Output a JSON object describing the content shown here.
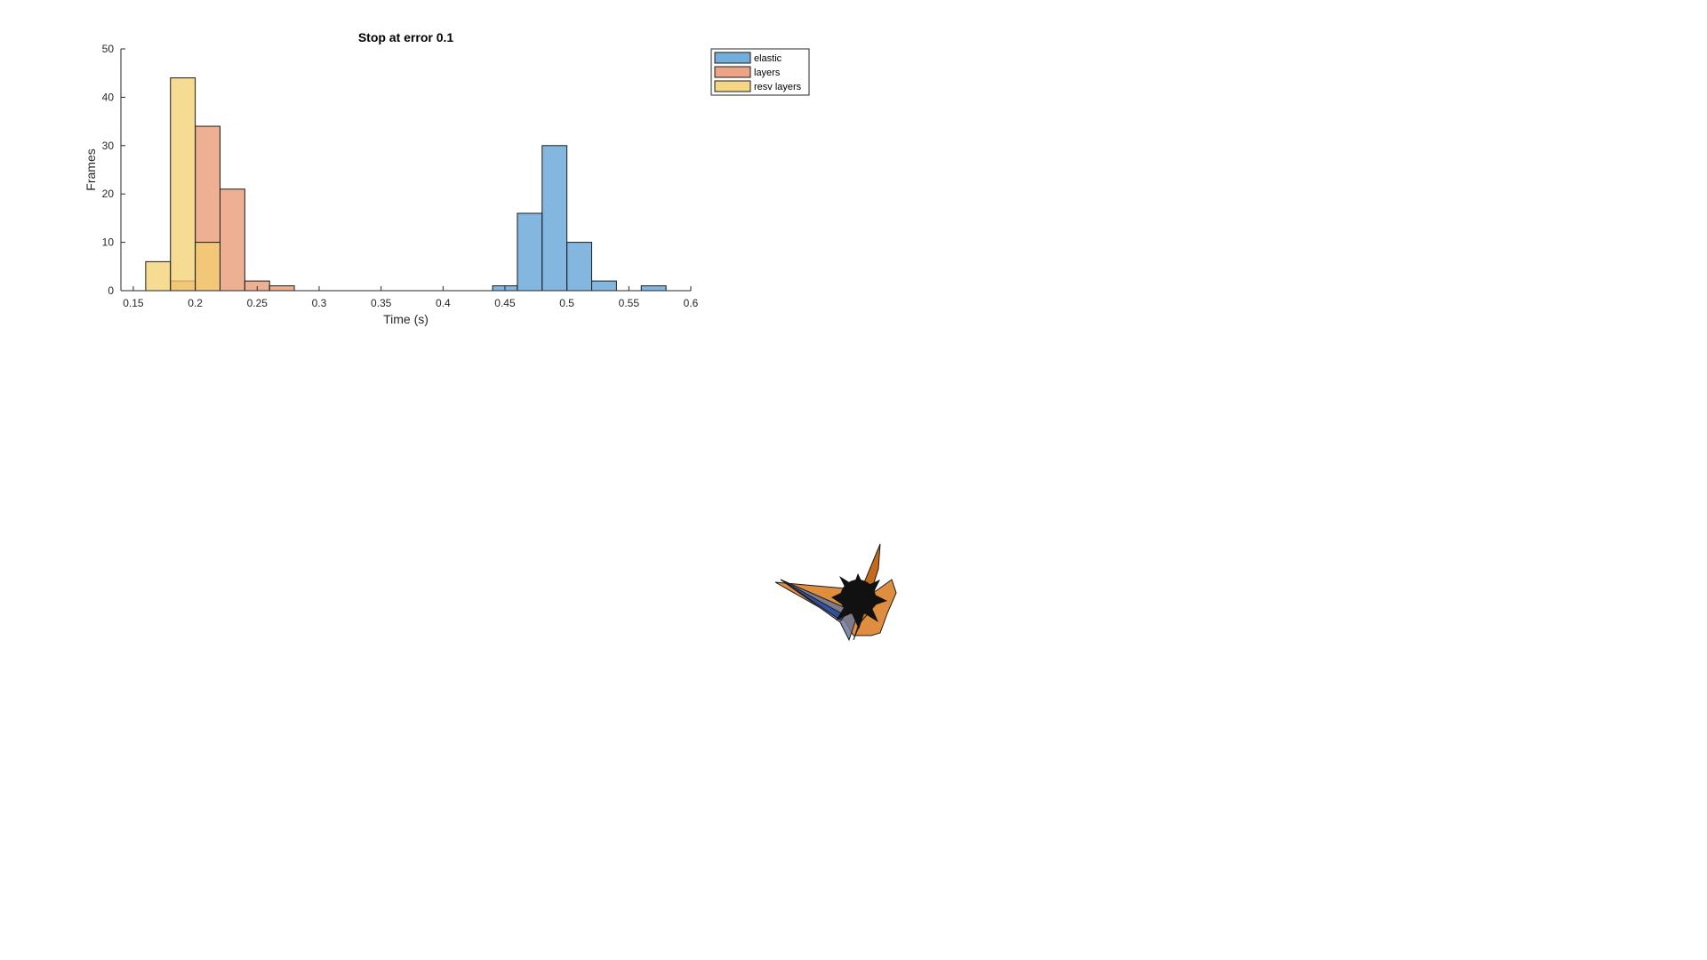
{
  "chart_data": {
    "type": "bar",
    "title": "Stop at error 0.1",
    "xlabel": "Time (s)",
    "ylabel": "Frames",
    "xlim": [
      0.14,
      0.6
    ],
    "ylim": [
      0,
      50
    ],
    "xticks": [
      "0.15",
      "0.2",
      "0.25",
      "0.3",
      "0.35",
      "0.4",
      "0.45",
      "0.5",
      "0.55",
      "0.6"
    ],
    "yticks": [
      "0",
      "10",
      "20",
      "30",
      "40",
      "50"
    ],
    "legend_position": "top-right outside",
    "grid": false,
    "bin_width": 0.02,
    "series": [
      {
        "name": "elastic",
        "color": "#5b9fd4",
        "bins": [
          {
            "start": 0.44,
            "end": 0.46,
            "count": 1
          },
          {
            "start": 0.46,
            "end": 0.48,
            "count": 16
          },
          {
            "start": 0.48,
            "end": 0.5,
            "count": 30
          },
          {
            "start": 0.5,
            "end": 0.52,
            "count": 10
          },
          {
            "start": 0.52,
            "end": 0.54,
            "count": 2
          },
          {
            "start": 0.56,
            "end": 0.58,
            "count": 1
          }
        ]
      },
      {
        "name": "layers",
        "color": "#e8956e",
        "bins": [
          {
            "start": 0.18,
            "end": 0.2,
            "count": 2
          },
          {
            "start": 0.2,
            "end": 0.22,
            "count": 34
          },
          {
            "start": 0.22,
            "end": 0.24,
            "count": 21
          },
          {
            "start": 0.24,
            "end": 0.26,
            "count": 2
          },
          {
            "start": 0.26,
            "end": 0.28,
            "count": 1
          }
        ]
      },
      {
        "name": "resv layers",
        "color": "#f3cf6e",
        "bins": [
          {
            "start": 0.16,
            "end": 0.18,
            "count": 6
          },
          {
            "start": 0.18,
            "end": 0.2,
            "count": 44
          },
          {
            "start": 0.2,
            "end": 0.22,
            "count": 10
          }
        ]
      }
    ]
  }
}
